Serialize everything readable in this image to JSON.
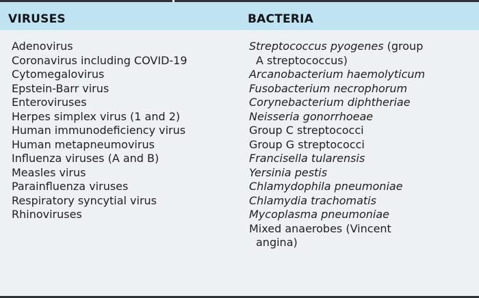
{
  "table": {
    "headers": {
      "viruses": "VIRUSES",
      "bacteria": "BACTERIA"
    },
    "viruses": [
      "Adenovirus",
      "Coronavirus including COVID-19",
      "Cytomegalovirus",
      "Epstein-Barr virus",
      "Enteroviruses",
      "Herpes simplex virus (1 and 2)",
      "Human immunodeficiency virus",
      "Human metapneumovirus",
      "Influenza viruses (A and B)",
      "Measles virus",
      "Parainfluenza viruses",
      "Respiratory syncytial virus",
      "Rhinoviruses"
    ],
    "bacteria": [
      {
        "italic": "Streptococcus pyogenes",
        "rest": " (group",
        "cont": "A streptococcus)"
      },
      {
        "italic": "Arcanobacterium haemolyticum"
      },
      {
        "italic": "Fusobacterium necrophorum"
      },
      {
        "italic": "Corynebacterium diphtheriae"
      },
      {
        "italic": "Neisseria gonorrhoeae"
      },
      {
        "plain": "Group C streptococci"
      },
      {
        "plain": "Group G streptococci"
      },
      {
        "italic": "Francisella tularensis"
      },
      {
        "italic": "Yersinia pestis"
      },
      {
        "italic": "Chlamydophila pneumoniae"
      },
      {
        "italic": "Chlamydia trachomatis"
      },
      {
        "italic": "Mycoplasma pneumoniae"
      },
      {
        "plain": "Mixed anaerobes (Vincent",
        "cont": "angina)"
      }
    ]
  },
  "colors": {
    "header_bg": "#bfe3f1",
    "body_bg": "#eef1f3",
    "rule": "#2c3038"
  }
}
